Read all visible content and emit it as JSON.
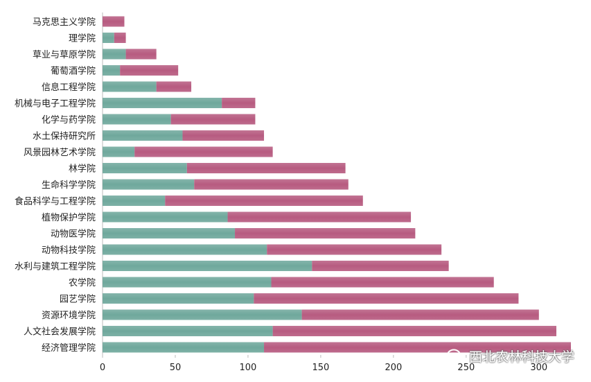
{
  "chart_data": {
    "type": "bar",
    "orientation": "horizontal",
    "stacked": true,
    "categories": [
      "马克思主义学院",
      "理学院",
      "草业与草原学院",
      "葡萄酒学院",
      "信息工程学院",
      "机械与电子工程学院",
      "化学与药学院",
      "水土保持研究所",
      "风景园林艺术学院",
      "林学院",
      "生命科学学院",
      "食品科学与工程学院",
      "植物保护学院",
      "动物医学院",
      "动物科技学院",
      "水利与建筑工程学院",
      "农学院",
      "园艺学院",
      "资源环境学院",
      "人文社会发展学院",
      "经济管理学院"
    ],
    "series": [
      {
        "color": "#6fa89c",
        "values": [
          0,
          8,
          16,
          12,
          37,
          82,
          47,
          55,
          22,
          58,
          63,
          43,
          86,
          91,
          113,
          144,
          116,
          104,
          137,
          117,
          111
        ]
      },
      {
        "color": "#b75b80",
        "values": [
          15,
          8,
          21,
          40,
          24,
          23,
          58,
          56,
          95,
          109,
          106,
          136,
          126,
          124,
          120,
          94,
          153,
          182,
          163,
          195,
          211
        ]
      }
    ],
    "xlim": [
      0,
      322
    ],
    "xticks": [
      "0",
      "50",
      "100",
      "150",
      "200",
      "250",
      "300"
    ],
    "xtick_values": [
      0,
      50,
      100,
      150,
      200,
      250,
      300
    ],
    "title": "",
    "xlabel": "",
    "ylabel": ""
  },
  "watermark": {
    "text": "西北农林科技大学",
    "icon": "wechat-icon"
  }
}
